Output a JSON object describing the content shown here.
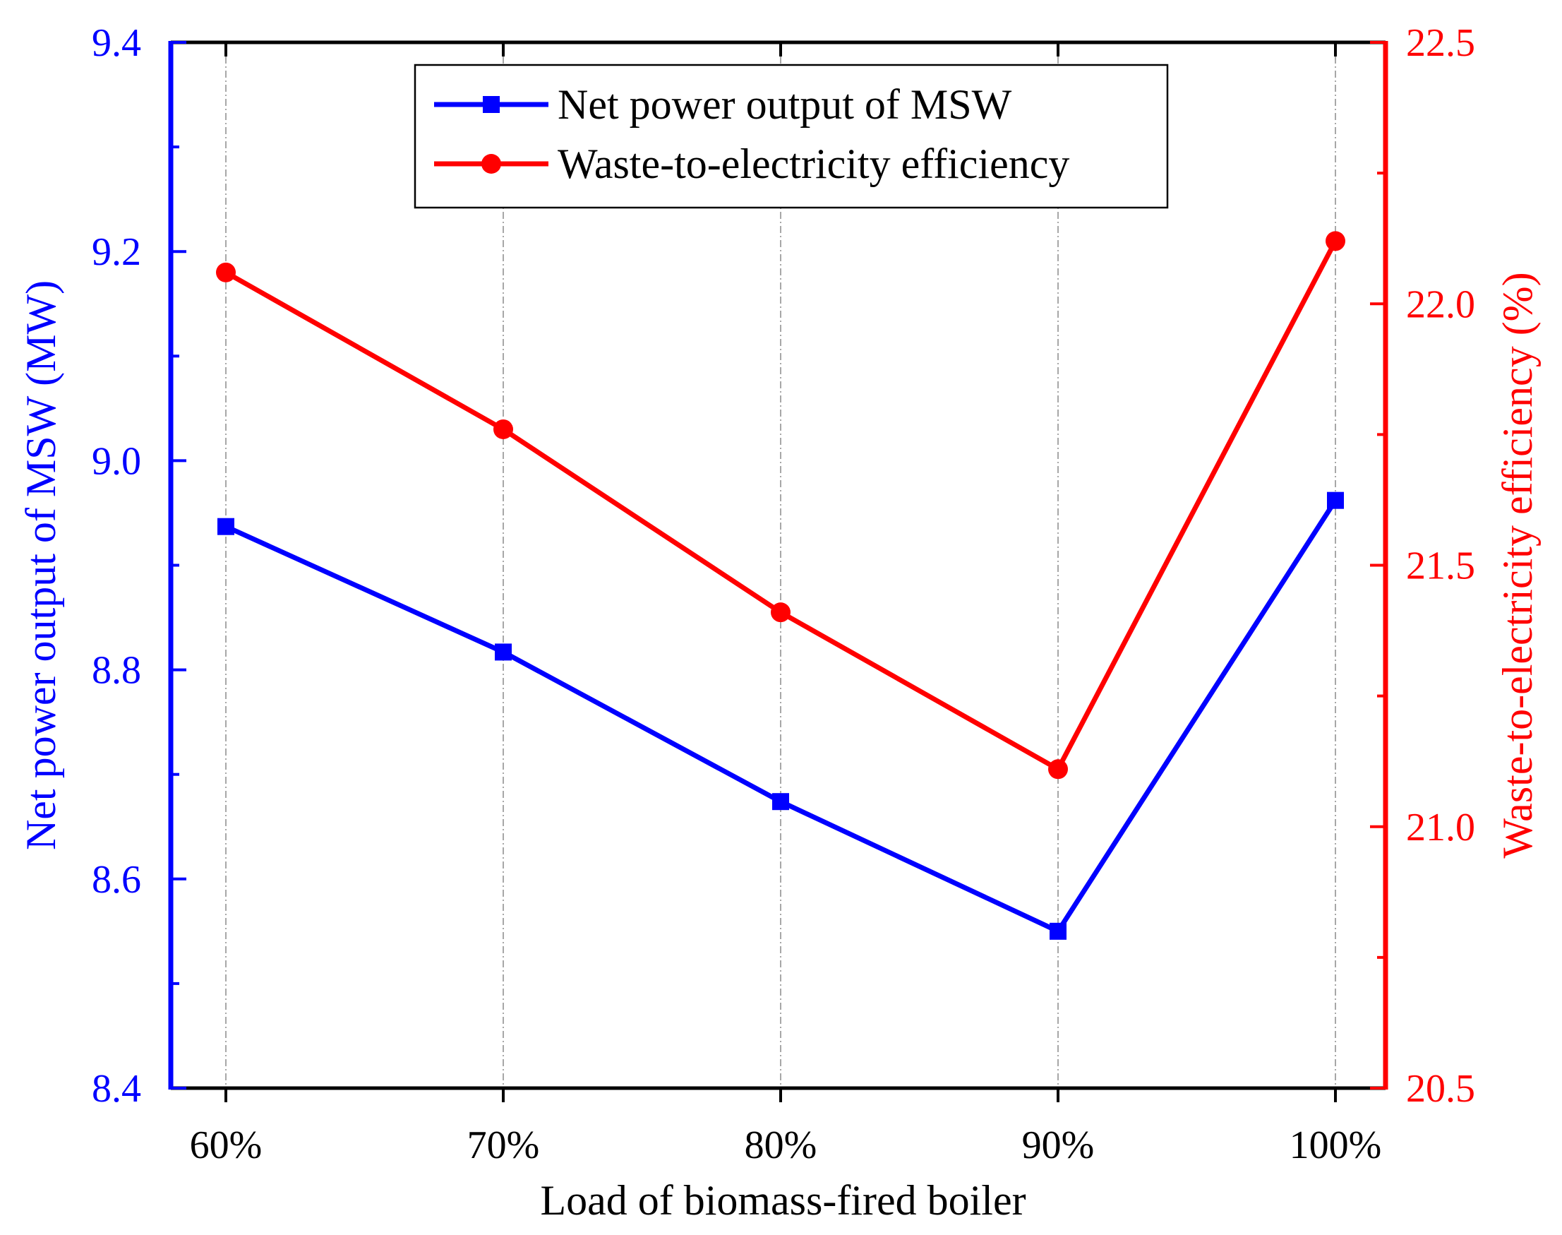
{
  "chart_data": {
    "type": "line",
    "xlabel": "Load of biomass-fired boiler",
    "categories": [
      "60%",
      "70%",
      "80%",
      "90%",
      "100%"
    ],
    "y_left": {
      "label": "Net power output of MSW (MW)",
      "range": [
        8.4,
        9.4
      ],
      "ticks": [
        "8.4",
        "8.6",
        "8.8",
        "9.0",
        "9.2",
        "9.4"
      ],
      "color": "#0000ff"
    },
    "y_right": {
      "label": "Waste-to-electricity efficiency (%)",
      "range": [
        20.5,
        22.5
      ],
      "ticks": [
        "20.5",
        "21.0",
        "21.5",
        "22.0",
        "22.5"
      ],
      "color": "#ff0000"
    },
    "series": [
      {
        "name": "Net power output of MSW",
        "axis": "left",
        "marker": "square",
        "color": "#0000ff",
        "values": [
          8.937,
          8.817,
          8.674,
          8.55,
          8.962
        ]
      },
      {
        "name": "Waste-to-electricity efficiency",
        "axis": "right",
        "marker": "circle",
        "color": "#ff0000",
        "values": [
          22.06,
          21.76,
          21.41,
          21.11,
          22.12
        ]
      }
    ],
    "grid": "vertical-dashed",
    "legend_position": "top-center"
  }
}
